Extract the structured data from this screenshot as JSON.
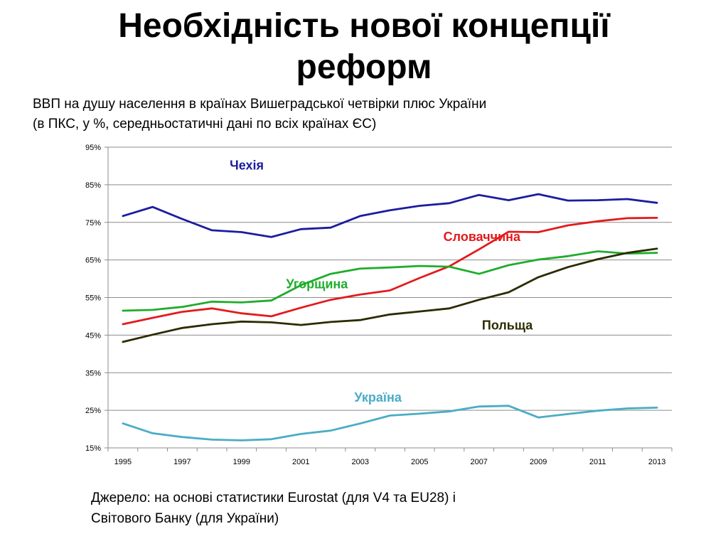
{
  "slide": {
    "title_line1": "Необхідність нової концепції",
    "title_line2": "реформ",
    "subtitle_line1": "ВВП на душу населення в країнах Вишеградської четвірки плюс України",
    "subtitle_line2": "(в ПКС, у %, середньостатичні дані по всіх країнах ЄС)",
    "source_line1": "Джерело: на основі статистики Eurostat (для V4 та EU28) і",
    "source_line2": "Світового Банку (для України)"
  },
  "chart_data": {
    "type": "line",
    "title": "",
    "xlabel": "",
    "ylabel": "",
    "ylim": [
      15,
      95
    ],
    "yticks": [
      15,
      25,
      35,
      45,
      55,
      65,
      75,
      85,
      95
    ],
    "ytick_labels": [
      "15%",
      "25%",
      "35%",
      "45%",
      "55%",
      "65%",
      "75%",
      "85%",
      "95%"
    ],
    "x": [
      1995,
      1996,
      1997,
      1998,
      1999,
      2000,
      2001,
      2002,
      2003,
      2004,
      2005,
      2006,
      2007,
      2008,
      2009,
      2010,
      2011,
      2012,
      2013
    ],
    "xtick_labels": [
      "1995",
      "1997",
      "1999",
      "2001",
      "2003",
      "2005",
      "2007",
      "2009",
      "2011",
      "2013"
    ],
    "grid": "horizontal",
    "series": [
      {
        "name": "Чехія",
        "color": "#1c1ca0",
        "values": [
          76.7,
          79.1,
          75.9,
          72.9,
          72.4,
          71.1,
          73.2,
          73.6,
          76.7,
          78.2,
          79.4,
          80.1,
          82.3,
          80.9,
          82.5,
          80.8,
          80.9,
          81.2,
          80.2
        ]
      },
      {
        "name": "Словаччина",
        "color": "#e31a1c",
        "values": [
          47.9,
          49.6,
          51.2,
          52.1,
          50.8,
          50.0,
          52.3,
          54.4,
          55.8,
          56.9,
          60.2,
          63.3,
          67.8,
          72.5,
          72.4,
          74.2,
          75.3,
          76.1,
          76.2
        ]
      },
      {
        "name": "Угорщина",
        "color": "#1fad2b",
        "values": [
          51.5,
          51.7,
          52.5,
          53.9,
          53.7,
          54.2,
          58.3,
          61.3,
          62.7,
          63.0,
          63.4,
          63.2,
          61.3,
          63.6,
          65.1,
          66.0,
          67.3,
          66.7,
          66.9
        ]
      },
      {
        "name": "Польща",
        "color": "#2b2b00",
        "values": [
          43.2,
          45.1,
          46.9,
          47.9,
          48.6,
          48.4,
          47.7,
          48.5,
          49.0,
          50.5,
          51.3,
          52.1,
          54.4,
          56.4,
          60.4,
          63.1,
          65.2,
          66.9,
          68.0
        ]
      },
      {
        "name": "Україна",
        "color": "#4bacc6",
        "values": [
          21.5,
          18.9,
          17.9,
          17.2,
          17.0,
          17.3,
          18.7,
          19.6,
          21.5,
          23.6,
          24.1,
          24.7,
          26.0,
          26.2,
          23.1,
          24.0,
          24.9,
          25.5,
          25.7
        ]
      }
    ],
    "annotations": [
      {
        "text": "Чехія",
        "series": "Чехія"
      },
      {
        "text": "Словаччина",
        "series": "Словаччина"
      },
      {
        "text": "Угорщина",
        "series": "Угорщина"
      },
      {
        "text": "Польща",
        "series": "Польща"
      },
      {
        "text": "Україна",
        "series": "Україна"
      }
    ]
  }
}
